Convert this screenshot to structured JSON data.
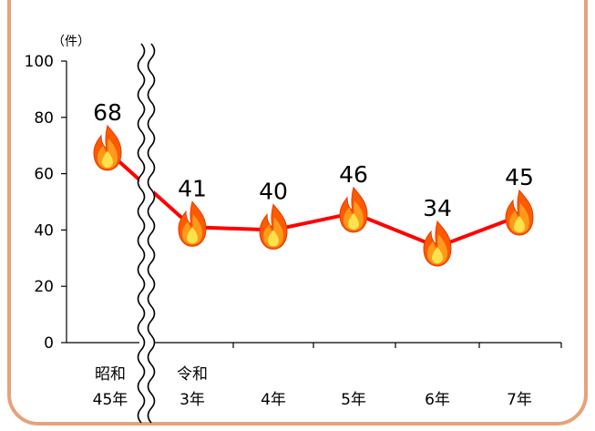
{
  "chart_data": {
    "type": "line",
    "y_unit": "（件）",
    "categories": [
      [
        "昭和",
        "45年"
      ],
      [
        "令和",
        "3年"
      ],
      [
        "",
        "4年"
      ],
      [
        "",
        "5年"
      ],
      [
        "",
        "6年"
      ],
      [
        "",
        "7年"
      ]
    ],
    "values": [
      68,
      41,
      40,
      46,
      34,
      45
    ],
    "data_labels": [
      "68",
      "41",
      "40",
      "46",
      "34",
      "45"
    ],
    "ylim": [
      0,
      100
    ],
    "yticks": [
      "0",
      "20",
      "40",
      "60",
      "80",
      "100"
    ],
    "axis_break": "between first and second category",
    "marker": "flame-icon",
    "grid": false,
    "colors": {
      "line": "#ff0000",
      "frame": "#e6a279",
      "axis": "#000000",
      "flame_outer": "#ff5a00",
      "flame_mid": "#ff9a1a",
      "flame_inner": "#ffe24a"
    }
  }
}
